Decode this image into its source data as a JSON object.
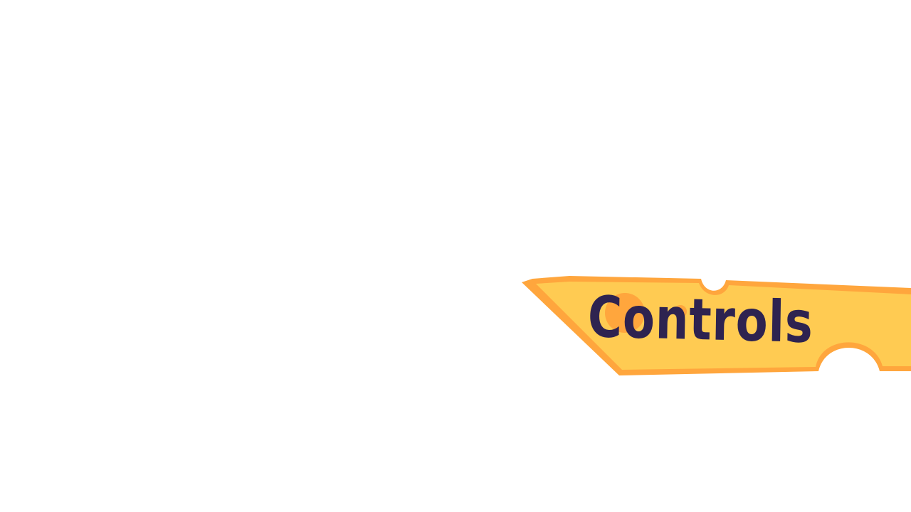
{
  "menu": {
    "controls_button": {
      "label": "Controls",
      "icon": "cheese-wedge-icon"
    }
  },
  "colors": {
    "background": "#ffffff",
    "cheese_fill": "#ffcb52",
    "cheese_outline": "#ffa63d",
    "cheese_hole": "#ffa63d",
    "label_text": "#2e2350"
  }
}
